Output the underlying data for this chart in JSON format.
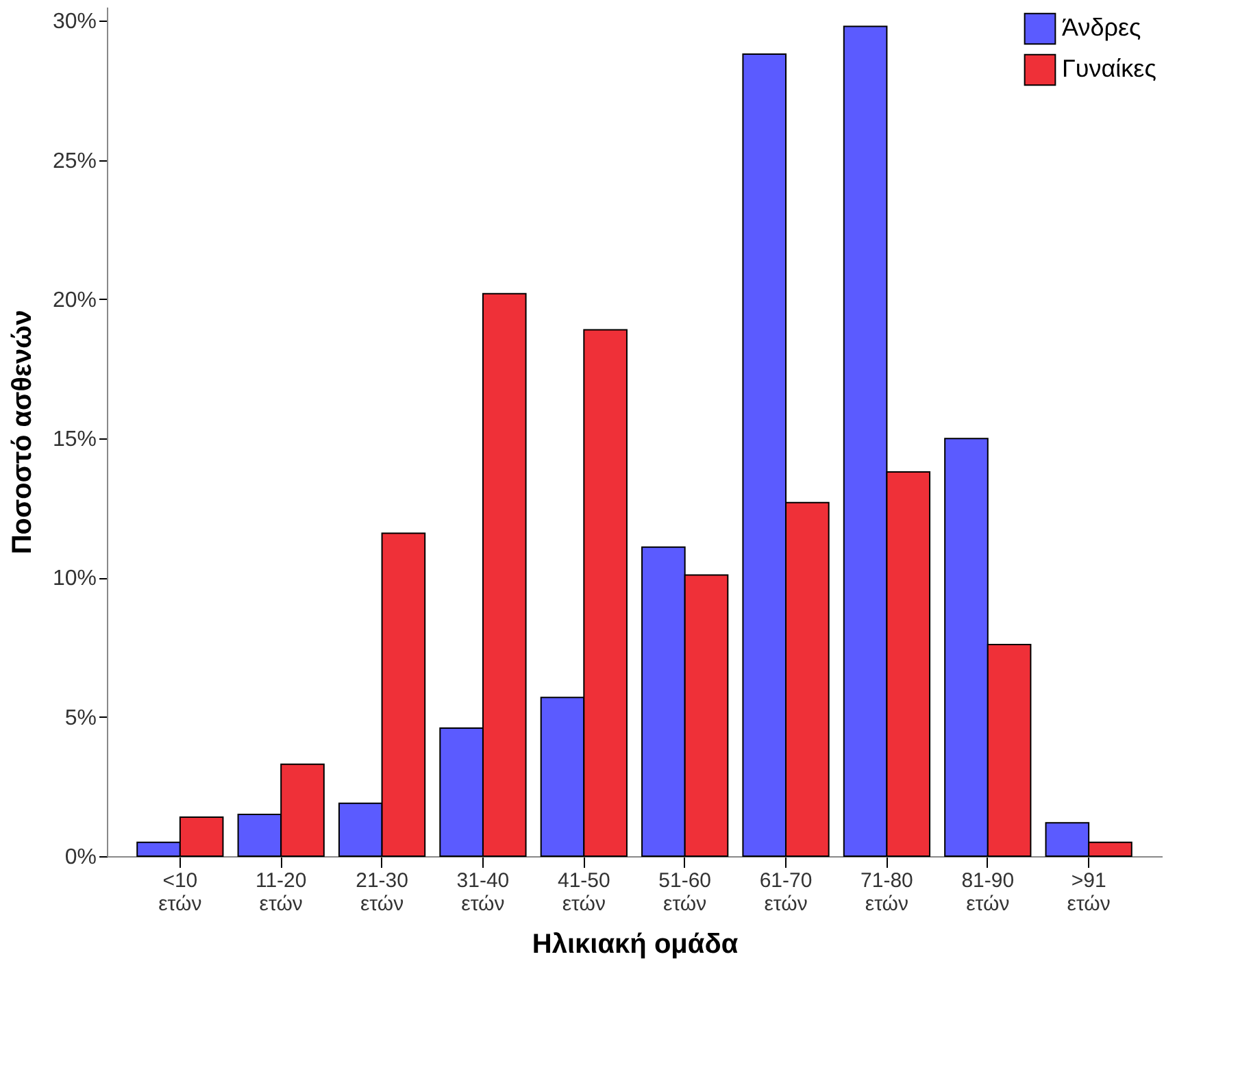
{
  "chart_data": {
    "type": "bar",
    "xlabel": "Ηλικιακή ομάδα",
    "ylabel": "Ποσοστό ασθενών",
    "categories": [
      "<10 ετών",
      "11-20 ετών",
      "21-30 ετών",
      "31-40 ετών",
      "41-50 ετών",
      "51-60 ετών",
      "61-70 ετών",
      "71-80 ετών",
      "81-90 ετών",
      ">91 ετών"
    ],
    "series": [
      {
        "name": "Άνδρες",
        "color": "#5b5bff",
        "values": [
          0.5,
          1.5,
          1.9,
          4.6,
          5.7,
          11.1,
          28.8,
          29.8,
          15.0,
          1.2
        ]
      },
      {
        "name": "Γυναίκες",
        "color": "#ef3038",
        "values": [
          1.4,
          3.3,
          11.6,
          20.2,
          18.9,
          10.1,
          12.7,
          13.8,
          7.6,
          0.5
        ]
      }
    ],
    "ylim": [
      0,
      30.5
    ],
    "yticks": [
      {
        "value": 0,
        "label": "0%"
      },
      {
        "value": 5,
        "label": "5%"
      },
      {
        "value": 10,
        "label": "10%"
      },
      {
        "value": 15,
        "label": "15%"
      },
      {
        "value": 20,
        "label": "20%"
      },
      {
        "value": 25,
        "label": "25%"
      },
      {
        "value": 30,
        "label": "30%"
      }
    ],
    "grid": false,
    "legend": "top right"
  }
}
